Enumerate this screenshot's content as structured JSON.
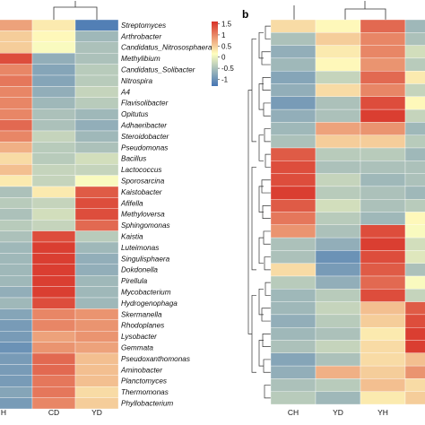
{
  "chart_data": [
    {
      "type": "heatmap",
      "panel_label": "",
      "columns": [
        "H",
        "CD",
        "YD"
      ],
      "rows": [
        "Streptomyces",
        "Arthrobacter",
        "Candidatus_Nitrososphaera",
        "Methylibium",
        "Candidatus_Solibacter",
        "Nitrospira",
        "A4",
        "Flavisolibacter",
        "Opitutus",
        "Adhaeribacter",
        "Steroidobacter",
        "Pseudomonas",
        "Bacillus",
        "Lactococcus",
        "Sporosarcina",
        "Kaistobacter",
        "Afifella",
        "Methyloversa",
        "Sphingomonas",
        "Kaistia",
        "Luteimonas",
        "Singulisphaera",
        "Dokdonella",
        "Pirellula",
        "Mycobacterium",
        "Hydrogenophaga",
        "Skermanella",
        "Rhodoplanes",
        "Lysobacter",
        "Gemmata",
        "Pseudoxanthomonas",
        "Aminobacter",
        "Planctomyces",
        "Thermomonas",
        "Phyllobacterium"
      ],
      "values": [
        [
          0.8,
          0.3,
          -1.2
        ],
        [
          0.5,
          0.2,
          -0.6
        ],
        [
          0.5,
          0.1,
          -0.5
        ],
        [
          1.4,
          -0.7,
          -0.5
        ],
        [
          1.0,
          -0.8,
          -0.4
        ],
        [
          1.1,
          -0.8,
          -0.4
        ],
        [
          1.0,
          -0.7,
          -0.3
        ],
        [
          1.0,
          -0.6,
          -0.4
        ],
        [
          1.0,
          -0.5,
          -0.6
        ],
        [
          1.2,
          -0.5,
          -0.7
        ],
        [
          1.0,
          -0.3,
          -0.6
        ],
        [
          0.7,
          -0.4,
          -0.5
        ],
        [
          0.4,
          -0.4,
          -0.2
        ],
        [
          0.6,
          -0.3,
          -0.3
        ],
        [
          0.3,
          -0.3,
          0.1
        ],
        [
          -0.5,
          0.3,
          1.3
        ],
        [
          -0.4,
          -0.3,
          1.4
        ],
        [
          -0.5,
          -0.2,
          1.4
        ],
        [
          -0.4,
          -0.3,
          1.2
        ],
        [
          -0.5,
          1.4,
          -0.4
        ],
        [
          -0.6,
          1.5,
          -0.6
        ],
        [
          -0.6,
          1.5,
          -0.7
        ],
        [
          -0.6,
          1.5,
          -0.7
        ],
        [
          -0.6,
          1.5,
          -0.6
        ],
        [
          -0.7,
          1.5,
          -0.6
        ],
        [
          -0.6,
          1.4,
          -0.6
        ],
        [
          -0.8,
          1.0,
          0.9
        ],
        [
          -0.9,
          1.0,
          0.9
        ],
        [
          -0.9,
          0.8,
          0.9
        ],
        [
          -1.0,
          0.9,
          0.8
        ],
        [
          -0.9,
          1.2,
          0.6
        ],
        [
          -0.9,
          1.2,
          0.6
        ],
        [
          -0.9,
          1.1,
          0.6
        ],
        [
          -0.8,
          1.1,
          0.4
        ],
        [
          -0.9,
          1.0,
          0.5
        ]
      ],
      "color_scale": {
        "ticks": [
          "1.5",
          "1",
          "0.5",
          "0",
          "-0.5",
          "-1"
        ],
        "tick_values": [
          1.5,
          1,
          0.5,
          0,
          -0.5,
          -1
        ],
        "range": [
          -1.3,
          1.6
        ],
        "colors": [
          "#4575b4",
          "#ffffbf",
          "#d73027"
        ]
      }
    },
    {
      "type": "heatmap",
      "panel_label": "b",
      "columns": [
        "CH",
        "YD",
        "YH",
        ""
      ],
      "rows": [],
      "values": [
        [
          0.4,
          0.2,
          1.2,
          -0.6
        ],
        [
          -0.5,
          0.5,
          1.0,
          -0.5
        ],
        [
          -0.7,
          0.3,
          1.0,
          -0.2
        ],
        [
          -0.6,
          0.2,
          0.9,
          -0.4
        ],
        [
          -0.8,
          -0.3,
          1.2,
          0.3
        ],
        [
          -0.7,
          0.4,
          1.0,
          -0.3
        ],
        [
          -0.9,
          -0.5,
          1.4,
          0.2
        ],
        [
          -0.7,
          -0.5,
          1.5,
          -0.3
        ],
        [
          -0.6,
          0.8,
          0.9,
          -0.6
        ],
        [
          -0.5,
          0.5,
          0.5,
          -0.4
        ],
        [
          1.3,
          -0.4,
          -0.4,
          -0.6
        ],
        [
          1.4,
          -0.5,
          -0.5,
          -0.5
        ],
        [
          1.4,
          -0.3,
          -0.6,
          -0.5
        ],
        [
          1.5,
          -0.4,
          -0.5,
          -0.6
        ],
        [
          1.3,
          -0.2,
          -0.5,
          -0.4
        ],
        [
          1.1,
          -0.4,
          -0.6,
          0.2
        ],
        [
          0.9,
          -0.5,
          1.4,
          0.1
        ],
        [
          -0.5,
          -0.7,
          1.5,
          -0.2
        ],
        [
          -0.5,
          -1.0,
          1.4,
          -0.1
        ],
        [
          0.4,
          -0.9,
          1.3,
          -0.5
        ],
        [
          -0.4,
          -0.7,
          1.2,
          0.1
        ],
        [
          -0.6,
          -0.4,
          1.4,
          -0.3
        ],
        [
          -0.6,
          -0.3,
          0.6,
          1.3
        ],
        [
          -0.7,
          -0.4,
          0.5,
          1.4
        ],
        [
          -0.6,
          -0.5,
          0.3,
          1.5
        ],
        [
          -0.5,
          -0.3,
          0.4,
          1.5
        ],
        [
          -0.8,
          -0.5,
          0.4,
          0.6
        ],
        [
          -0.7,
          0.7,
          0.5,
          0.9
        ],
        [
          -0.5,
          -0.4,
          0.6,
          0.4
        ],
        [
          -0.4,
          -0.6,
          0.3,
          0.5
        ]
      ]
    }
  ]
}
